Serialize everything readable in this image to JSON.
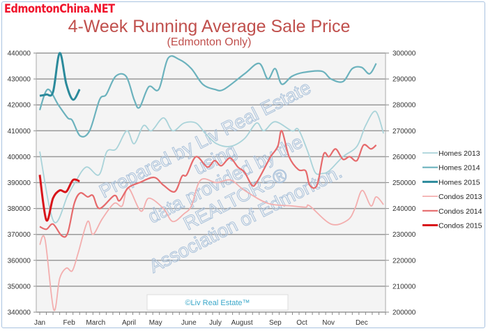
{
  "logo": "EdmontonChina.NET",
  "chart_data": {
    "type": "line",
    "title": "4-Week Running Average Sale Price",
    "subtitle": "(Edmonton Only)",
    "x_unit": "week of year",
    "xlim": [
      0,
      52
    ],
    "month_labels": [
      "Jan",
      "Feb",
      "March",
      "April",
      "May",
      "June",
      "July",
      "August",
      "Sep",
      "Oct",
      "Nov",
      "Dec"
    ],
    "month_weeks": [
      0,
      4,
      8,
      13,
      17,
      22,
      26,
      30,
      35,
      39,
      43,
      48
    ],
    "left_axis": {
      "range": [
        340000,
        440000
      ],
      "ticks": [
        "340000",
        "350000",
        "360000",
        "370000",
        "380000",
        "390000",
        "400000",
        "410000",
        "420000",
        "430000",
        "440000"
      ]
    },
    "right_axis": {
      "range": [
        200000,
        300000
      ],
      "ticks": [
        "200000",
        "210000",
        "220000",
        "230000",
        "240000",
        "250000",
        "260000",
        "270000",
        "280000",
        "290000",
        "300000"
      ]
    },
    "grid": true,
    "legend_placement": "right",
    "series": [
      {
        "name": "Homes 2013",
        "axis": "left",
        "color": "#a9d3d9",
        "width": 1.8,
        "points": [
          [
            0,
            402000
          ],
          [
            2.1,
            375000
          ],
          [
            4.2,
            385000
          ],
          [
            5.3,
            390000
          ],
          [
            7,
            396000
          ],
          [
            8.9,
            393000
          ],
          [
            10.1,
            402000
          ],
          [
            11.5,
            403000
          ],
          [
            13.1,
            410000
          ],
          [
            14.2,
            405000
          ],
          [
            15.6,
            412000
          ],
          [
            16.8,
            410000
          ],
          [
            18.6,
            415000
          ],
          [
            20,
            410000
          ],
          [
            21.7,
            413000
          ],
          [
            23.5,
            413000
          ],
          [
            24.9,
            409000
          ],
          [
            26.6,
            405000
          ],
          [
            28.7,
            404000
          ],
          [
            30.8,
            407000
          ],
          [
            32.6,
            413000
          ],
          [
            33.7,
            410000
          ],
          [
            35.4,
            413500
          ],
          [
            37.9,
            410000
          ],
          [
            38.9,
            410500
          ],
          [
            40.3,
            402000
          ],
          [
            41.4,
            394000
          ],
          [
            42.4,
            393500
          ],
          [
            43.5,
            394500
          ],
          [
            45.6,
            400000
          ],
          [
            47.7,
            404000
          ],
          [
            49,
            412000
          ],
          [
            50.5,
            417500
          ],
          [
            51.7,
            409000
          ]
        ]
      },
      {
        "name": "Homes 2014",
        "axis": "left",
        "color": "#6bb2bd",
        "width": 2.2,
        "points": [
          [
            0,
            418000
          ],
          [
            1.2,
            426000
          ],
          [
            2.8,
            420000
          ],
          [
            4.2,
            415000
          ],
          [
            4.9,
            414000
          ],
          [
            6.1,
            408000
          ],
          [
            7.5,
            410000
          ],
          [
            9,
            422000
          ],
          [
            10,
            424000
          ],
          [
            11.4,
            431000
          ],
          [
            13,
            431000
          ],
          [
            14.2,
            422000
          ],
          [
            15,
            419000
          ],
          [
            16.4,
            427000
          ],
          [
            17.9,
            426000
          ],
          [
            19.3,
            438000
          ],
          [
            21,
            437500
          ],
          [
            22.8,
            434000
          ],
          [
            24.5,
            428000
          ],
          [
            26.3,
            426000
          ],
          [
            27.7,
            426000
          ],
          [
            30.8,
            432000
          ],
          [
            33,
            436000
          ],
          [
            34.3,
            430000
          ],
          [
            35.4,
            434000
          ],
          [
            36.4,
            428000
          ],
          [
            37.9,
            431000
          ],
          [
            39.6,
            432500
          ],
          [
            42.4,
            433000
          ],
          [
            43.8,
            430000
          ],
          [
            45.6,
            429000
          ],
          [
            47,
            434000
          ],
          [
            48.4,
            434500
          ],
          [
            49.6,
            432000
          ],
          [
            50.6,
            436000
          ]
        ]
      },
      {
        "name": "Homes 2015",
        "axis": "left",
        "color": "#2b8a9b",
        "width": 3,
        "points": [
          [
            0,
            423500
          ],
          [
            1,
            424000
          ],
          [
            2,
            425000
          ],
          [
            3,
            440000
          ],
          [
            4,
            428000
          ],
          [
            5,
            422000
          ],
          [
            6,
            426000
          ]
        ]
      },
      {
        "name": "Condos 2013",
        "axis": "right",
        "color": "#f3aeae",
        "width": 1.8,
        "points": [
          [
            0,
            226000
          ],
          [
            0.8,
            228000
          ],
          [
            2.1,
            201000
          ],
          [
            3,
            213000
          ],
          [
            4,
            217000
          ],
          [
            4.9,
            216000
          ],
          [
            5.8,
            223000
          ],
          [
            7.2,
            235000
          ],
          [
            8,
            230000
          ],
          [
            9.4,
            236000
          ],
          [
            11.2,
            242000
          ],
          [
            12.4,
            241000
          ],
          [
            13.3,
            248000
          ],
          [
            15.2,
            239000
          ],
          [
            16.4,
            244000
          ],
          [
            18.6,
            240000
          ],
          [
            20,
            235000
          ],
          [
            21.7,
            238000
          ],
          [
            22.8,
            241000
          ],
          [
            24.2,
            251000
          ],
          [
            26.6,
            250000
          ],
          [
            28.7,
            251000
          ],
          [
            30.8,
            247000
          ],
          [
            34.3,
            242000
          ],
          [
            37.9,
            241000
          ],
          [
            40,
            240500
          ],
          [
            40.6,
            241000
          ],
          [
            43.8,
            234000
          ],
          [
            46.3,
            235500
          ],
          [
            47.4,
            240000
          ],
          [
            48.5,
            247000
          ],
          [
            49.8,
            241000
          ],
          [
            50.6,
            244500
          ],
          [
            51.7,
            241500
          ]
        ]
      },
      {
        "name": "Condos 2014",
        "axis": "right",
        "color": "#e66a6c",
        "width": 2.2,
        "points": [
          [
            0,
            233000
          ],
          [
            1,
            232000
          ],
          [
            2,
            234000
          ],
          [
            3.3,
            229500
          ],
          [
            4.2,
            230500
          ],
          [
            5.2,
            242000
          ],
          [
            6.1,
            246000
          ],
          [
            7.2,
            244500
          ],
          [
            8,
            245000
          ],
          [
            9,
            240000
          ],
          [
            11.2,
            245000
          ],
          [
            12,
            243000
          ],
          [
            13.3,
            248000
          ],
          [
            15,
            250000
          ],
          [
            17.2,
            252000
          ],
          [
            18.6,
            249000
          ],
          [
            20.3,
            246500
          ],
          [
            21.4,
            252500
          ],
          [
            22.1,
            253000
          ],
          [
            23.5,
            260000
          ],
          [
            25.2,
            256000
          ],
          [
            26.3,
            258500
          ],
          [
            27.3,
            256500
          ],
          [
            28.6,
            259500
          ],
          [
            29.8,
            256000
          ],
          [
            30.8,
            254000
          ],
          [
            31.9,
            249000
          ],
          [
            32.6,
            250000
          ],
          [
            34.3,
            258000
          ],
          [
            34.7,
            260000
          ],
          [
            35.8,
            264000
          ],
          [
            36.4,
            270000
          ],
          [
            37.5,
            260000
          ],
          [
            38.9,
            255000
          ],
          [
            40,
            254500
          ],
          [
            40.6,
            249000
          ],
          [
            41.7,
            249000
          ],
          [
            42.7,
            261000
          ],
          [
            43.5,
            260000
          ],
          [
            44.5,
            263000
          ],
          [
            45.6,
            259000
          ],
          [
            46.6,
            260000
          ],
          [
            47.7,
            258500
          ],
          [
            48.7,
            264500
          ],
          [
            49.8,
            263000
          ],
          [
            50.6,
            264500
          ]
        ]
      },
      {
        "name": "Condos 2015",
        "axis": "right",
        "color": "#d8141a",
        "width": 3,
        "points": [
          [
            0,
            253000
          ],
          [
            1,
            235500
          ],
          [
            2,
            244000
          ],
          [
            3,
            247000
          ],
          [
            4,
            246500
          ],
          [
            5,
            251000
          ],
          [
            6,
            250500
          ]
        ]
      }
    ],
    "watermark": [
      "Prepared by Liv Real Estate",
      "using",
      "data provided by the",
      "REALTORS®",
      "Association of Edmonton."
    ],
    "credit": "©Liv Real Estate™"
  }
}
